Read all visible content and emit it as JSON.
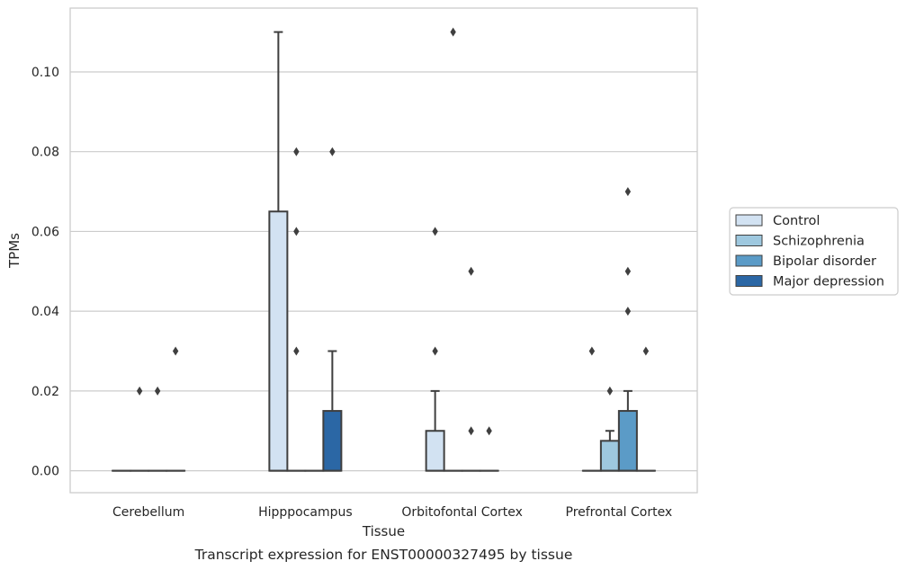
{
  "chart_data": {
    "type": "boxplot",
    "caption": "Transcript expression for ENST00000327495 by tissue",
    "xlabel": "Tissue",
    "ylabel": "TPMs",
    "ylim": [
      -0.0055,
      0.116
    ],
    "yticks": [
      0.0,
      0.02,
      0.04,
      0.06,
      0.08,
      0.1
    ],
    "ytick_labels": [
      "0.00",
      "0.02",
      "0.04",
      "0.06",
      "0.08",
      "0.10"
    ],
    "grid": "horizontal",
    "legend_position": "right",
    "categories": [
      "Cerebellum",
      "Hipppocampus",
      "Orbitofontal Cortex",
      "Prefrontal Cortex"
    ],
    "series": [
      {
        "name": "Control",
        "color": "#d2e2f2",
        "boxes": [
          {
            "q1": 0,
            "median": 0,
            "q3": 0,
            "whisker_low": 0,
            "whisker_high": 0,
            "outliers": []
          },
          {
            "q1": 0,
            "median": 0,
            "q3": 0.065,
            "whisker_low": 0,
            "whisker_high": 0.11,
            "outliers": []
          },
          {
            "q1": 0,
            "median": 0,
            "q3": 0.01,
            "whisker_low": 0,
            "whisker_high": 0.02,
            "outliers": [
              0.03,
              0.06
            ]
          },
          {
            "q1": 0,
            "median": 0,
            "q3": 0,
            "whisker_low": 0,
            "whisker_high": 0,
            "outliers": [
              0.03
            ]
          }
        ]
      },
      {
        "name": "Schizophrenia",
        "color": "#9ec8df",
        "boxes": [
          {
            "q1": 0,
            "median": 0,
            "q3": 0,
            "whisker_low": 0,
            "whisker_high": 0,
            "outliers": [
              0.02
            ]
          },
          {
            "q1": 0,
            "median": 0,
            "q3": 0,
            "whisker_low": 0,
            "whisker_high": 0,
            "outliers": [
              0.03,
              0.06,
              0.08
            ]
          },
          {
            "q1": 0,
            "median": 0,
            "q3": 0,
            "whisker_low": 0,
            "whisker_high": 0,
            "outliers": [
              0.11
            ]
          },
          {
            "q1": 0,
            "median": 0,
            "q3": 0.0075,
            "whisker_low": 0,
            "whisker_high": 0.01,
            "outliers": [
              0.02
            ]
          }
        ]
      },
      {
        "name": "Bipolar disorder",
        "color": "#5b9bc7",
        "boxes": [
          {
            "q1": 0,
            "median": 0,
            "q3": 0,
            "whisker_low": 0,
            "whisker_high": 0,
            "outliers": [
              0.02
            ]
          },
          {
            "q1": 0,
            "median": 0,
            "q3": 0,
            "whisker_low": 0,
            "whisker_high": 0,
            "outliers": []
          },
          {
            "q1": 0,
            "median": 0,
            "q3": 0,
            "whisker_low": 0,
            "whisker_high": 0,
            "outliers": [
              0.05,
              0.01
            ]
          },
          {
            "q1": 0,
            "median": 0,
            "q3": 0.015,
            "whisker_low": 0,
            "whisker_high": 0.02,
            "outliers": [
              0.04,
              0.05,
              0.07
            ]
          }
        ]
      },
      {
        "name": "Major depression",
        "color": "#2b67a5",
        "boxes": [
          {
            "q1": 0,
            "median": 0,
            "q3": 0,
            "whisker_low": 0,
            "whisker_high": 0,
            "outliers": [
              0.03
            ]
          },
          {
            "q1": 0,
            "median": 0,
            "q3": 0.015,
            "whisker_low": 0,
            "whisker_high": 0.03,
            "outliers": [
              0.08
            ]
          },
          {
            "q1": 0,
            "median": 0,
            "q3": 0,
            "whisker_low": 0,
            "whisker_high": 0,
            "outliers": [
              0.01
            ]
          },
          {
            "q1": 0,
            "median": 0,
            "q3": 0,
            "whisker_low": 0,
            "whisker_high": 0,
            "outliers": [
              0.03
            ]
          }
        ]
      }
    ]
  }
}
